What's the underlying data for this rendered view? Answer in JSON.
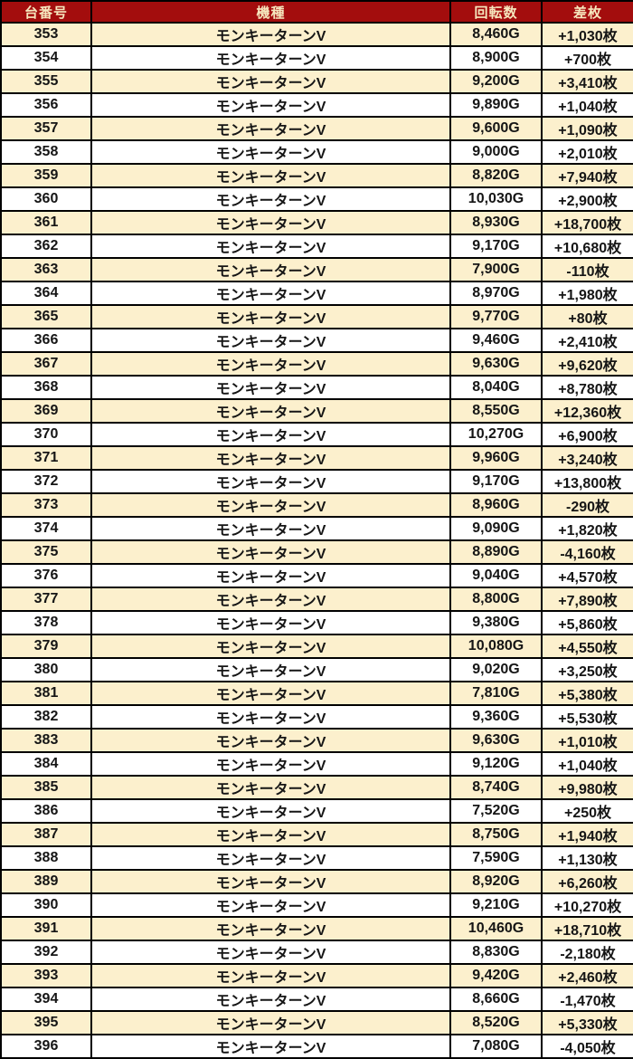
{
  "chart_data": {
    "type": "table",
    "title": "",
    "columns": [
      "台番号",
      "機種",
      "回転数",
      "差枚"
    ],
    "column_keys": [
      "dai",
      "kishu",
      "kaiten",
      "sa"
    ],
    "rows": [
      {
        "dai": "353",
        "kishu": "モンキーターンV",
        "kaiten": "8,460G",
        "sa": "+1,030枚"
      },
      {
        "dai": "354",
        "kishu": "モンキーターンV",
        "kaiten": "8,900G",
        "sa": "+700枚"
      },
      {
        "dai": "355",
        "kishu": "モンキーターンV",
        "kaiten": "9,200G",
        "sa": "+3,410枚"
      },
      {
        "dai": "356",
        "kishu": "モンキーターンV",
        "kaiten": "9,890G",
        "sa": "+1,040枚"
      },
      {
        "dai": "357",
        "kishu": "モンキーターンV",
        "kaiten": "9,600G",
        "sa": "+1,090枚"
      },
      {
        "dai": "358",
        "kishu": "モンキーターンV",
        "kaiten": "9,000G",
        "sa": "+2,010枚"
      },
      {
        "dai": "359",
        "kishu": "モンキーターンV",
        "kaiten": "8,820G",
        "sa": "+7,940枚"
      },
      {
        "dai": "360",
        "kishu": "モンキーターンV",
        "kaiten": "10,030G",
        "sa": "+2,900枚"
      },
      {
        "dai": "361",
        "kishu": "モンキーターンV",
        "kaiten": "8,930G",
        "sa": "+18,700枚"
      },
      {
        "dai": "362",
        "kishu": "モンキーターンV",
        "kaiten": "9,170G",
        "sa": "+10,680枚"
      },
      {
        "dai": "363",
        "kishu": "モンキーターンV",
        "kaiten": "7,900G",
        "sa": "-110枚"
      },
      {
        "dai": "364",
        "kishu": "モンキーターンV",
        "kaiten": "8,970G",
        "sa": "+1,980枚"
      },
      {
        "dai": "365",
        "kishu": "モンキーターンV",
        "kaiten": "9,770G",
        "sa": "+80枚"
      },
      {
        "dai": "366",
        "kishu": "モンキーターンV",
        "kaiten": "9,460G",
        "sa": "+2,410枚"
      },
      {
        "dai": "367",
        "kishu": "モンキーターンV",
        "kaiten": "9,630G",
        "sa": "+9,620枚"
      },
      {
        "dai": "368",
        "kishu": "モンキーターンV",
        "kaiten": "8,040G",
        "sa": "+8,780枚"
      },
      {
        "dai": "369",
        "kishu": "モンキーターンV",
        "kaiten": "8,550G",
        "sa": "+12,360枚"
      },
      {
        "dai": "370",
        "kishu": "モンキーターンV",
        "kaiten": "10,270G",
        "sa": "+6,900枚"
      },
      {
        "dai": "371",
        "kishu": "モンキーターンV",
        "kaiten": "9,960G",
        "sa": "+3,240枚"
      },
      {
        "dai": "372",
        "kishu": "モンキーターンV",
        "kaiten": "9,170G",
        "sa": "+13,800枚"
      },
      {
        "dai": "373",
        "kishu": "モンキーターンV",
        "kaiten": "8,960G",
        "sa": "-290枚"
      },
      {
        "dai": "374",
        "kishu": "モンキーターンV",
        "kaiten": "9,090G",
        "sa": "+1,820枚"
      },
      {
        "dai": "375",
        "kishu": "モンキーターンV",
        "kaiten": "8,890G",
        "sa": "-4,160枚"
      },
      {
        "dai": "376",
        "kishu": "モンキーターンV",
        "kaiten": "9,040G",
        "sa": "+4,570枚"
      },
      {
        "dai": "377",
        "kishu": "モンキーターンV",
        "kaiten": "8,800G",
        "sa": "+7,890枚"
      },
      {
        "dai": "378",
        "kishu": "モンキーターンV",
        "kaiten": "9,380G",
        "sa": "+5,860枚"
      },
      {
        "dai": "379",
        "kishu": "モンキーターンV",
        "kaiten": "10,080G",
        "sa": "+4,550枚"
      },
      {
        "dai": "380",
        "kishu": "モンキーターンV",
        "kaiten": "9,020G",
        "sa": "+3,250枚"
      },
      {
        "dai": "381",
        "kishu": "モンキーターンV",
        "kaiten": "7,810G",
        "sa": "+5,380枚"
      },
      {
        "dai": "382",
        "kishu": "モンキーターンV",
        "kaiten": "9,360G",
        "sa": "+5,530枚"
      },
      {
        "dai": "383",
        "kishu": "モンキーターンV",
        "kaiten": "9,630G",
        "sa": "+1,010枚"
      },
      {
        "dai": "384",
        "kishu": "モンキーターンV",
        "kaiten": "9,120G",
        "sa": "+1,040枚"
      },
      {
        "dai": "385",
        "kishu": "モンキーターンV",
        "kaiten": "8,740G",
        "sa": "+9,980枚"
      },
      {
        "dai": "386",
        "kishu": "モンキーターンV",
        "kaiten": "7,520G",
        "sa": "+250枚"
      },
      {
        "dai": "387",
        "kishu": "モンキーターンV",
        "kaiten": "8,750G",
        "sa": "+1,940枚"
      },
      {
        "dai": "388",
        "kishu": "モンキーターンV",
        "kaiten": "7,590G",
        "sa": "+1,130枚"
      },
      {
        "dai": "389",
        "kishu": "モンキーターンV",
        "kaiten": "8,920G",
        "sa": "+6,260枚"
      },
      {
        "dai": "390",
        "kishu": "モンキーターンV",
        "kaiten": "9,210G",
        "sa": "+10,270枚"
      },
      {
        "dai": "391",
        "kishu": "モンキーターンV",
        "kaiten": "10,460G",
        "sa": "+18,710枚"
      },
      {
        "dai": "392",
        "kishu": "モンキーターンV",
        "kaiten": "8,830G",
        "sa": "-2,180枚"
      },
      {
        "dai": "393",
        "kishu": "モンキーターンV",
        "kaiten": "9,420G",
        "sa": "+2,460枚"
      },
      {
        "dai": "394",
        "kishu": "モンキーターンV",
        "kaiten": "8,660G",
        "sa": "-1,470枚"
      },
      {
        "dai": "395",
        "kishu": "モンキーターンV",
        "kaiten": "8,520G",
        "sa": "+5,330枚"
      },
      {
        "dai": "396",
        "kishu": "モンキーターンV",
        "kaiten": "7,080G",
        "sa": "-4,050枚"
      }
    ]
  },
  "colors": {
    "header_bg": "#A30D0D",
    "header_text": "#F6E7BE",
    "row_alt_bg": "#FCF0CD",
    "row_bg": "#FFFFFF",
    "positive_text": "#F02418",
    "negative_text": "#151515",
    "border": "#000000"
  }
}
